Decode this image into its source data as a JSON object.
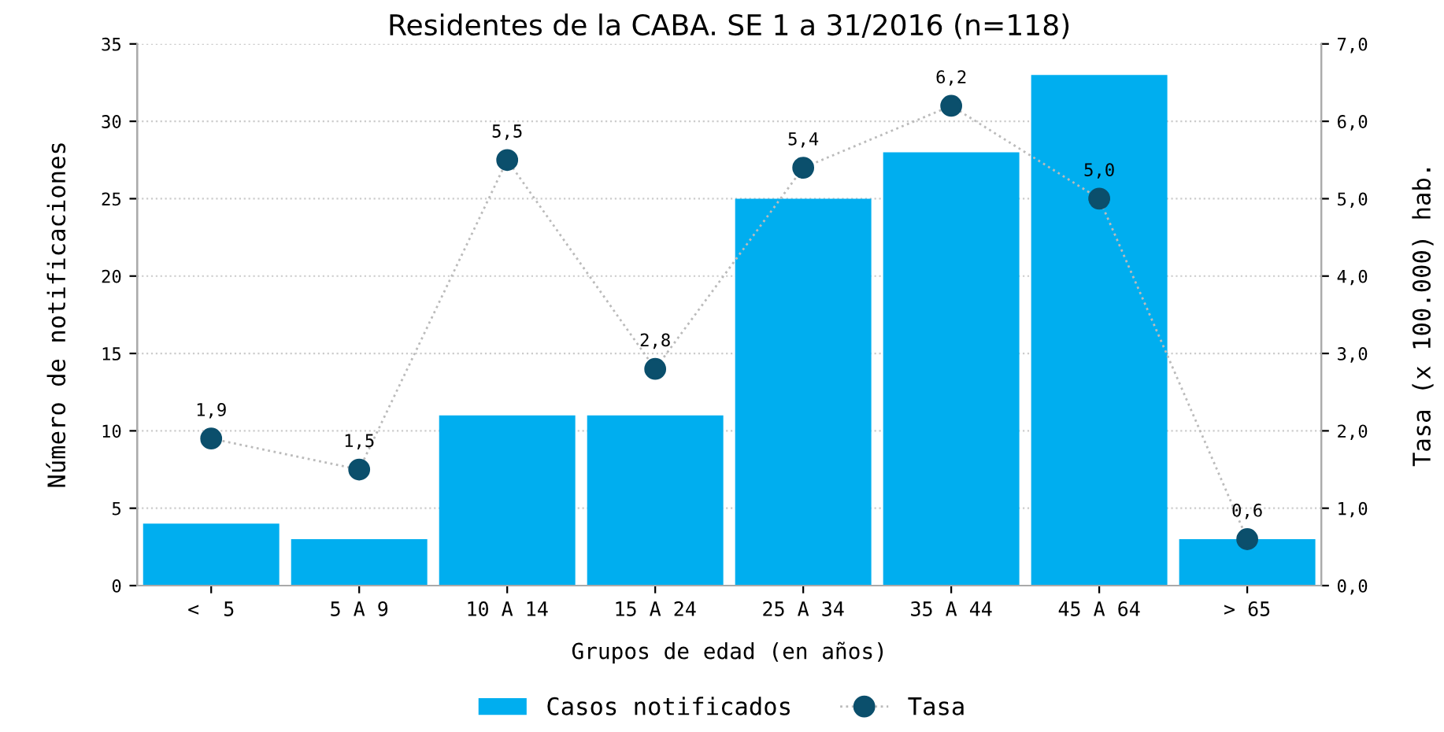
{
  "chart_data": {
    "type": "bar",
    "title": "Residentes de la CABA. SE 1 a 31/2016 (n=118)",
    "xlabel": "Grupos de edad (en años)",
    "ylabel": "Número de notificaciones",
    "y2label": "Tasa (x 100.000) hab.",
    "categories": [
      "<  5",
      "5 A 9",
      "10 A 14",
      "15 A 24",
      "25 A 34",
      "35 A 44",
      "45 A 64",
      "> 65"
    ],
    "series": [
      {
        "name": "Casos notificados",
        "color": "#00aeef",
        "values": [
          4,
          3,
          11,
          11,
          25,
          28,
          33,
          3
        ]
      },
      {
        "name": "Tasa",
        "type": "line",
        "axis": "y2",
        "color": "#0b4f6c",
        "values": [
          1.9,
          1.5,
          5.5,
          2.8,
          5.4,
          6.2,
          5.0,
          0.6
        ],
        "value_labels": [
          "1,9",
          "1,5",
          "5,5",
          "2,8",
          "5,4",
          "6,2",
          "5,0",
          "0,6"
        ]
      }
    ],
    "ylim": [
      0,
      35
    ],
    "yticks": [
      0,
      5,
      10,
      15,
      20,
      25,
      30,
      35
    ],
    "y2lim": [
      0,
      7
    ],
    "y2ticks": [
      {
        "value": 0,
        "label": "0,0"
      },
      {
        "value": 1,
        "label": "1,0"
      },
      {
        "value": 2,
        "label": "2,0"
      },
      {
        "value": 3,
        "label": "3,0"
      },
      {
        "value": 4,
        "label": "4,0"
      },
      {
        "value": 5,
        "label": "5,0"
      },
      {
        "value": 6,
        "label": "6,0"
      },
      {
        "value": 7,
        "label": "7,0"
      }
    ],
    "grid": "y",
    "legend": "bottom",
    "marker": "circle",
    "line_style": "dotted"
  }
}
